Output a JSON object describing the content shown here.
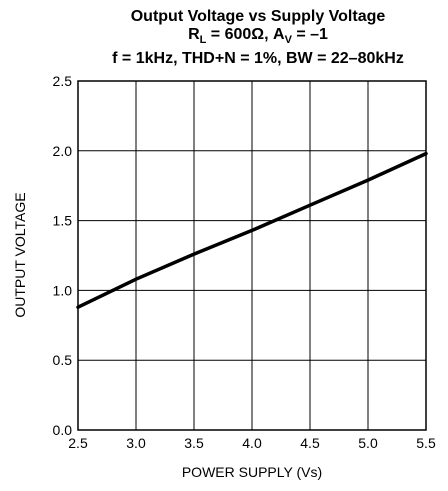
{
  "chart_data": {
    "type": "line",
    "title": "Output Voltage vs Supply Voltage",
    "subtitle_line1": {
      "r_main": "R",
      "r_sub": "L",
      "middle": " = 600Ω, A",
      "a_sub": "V",
      "end": " = –1"
    },
    "subtitle_line2": "f = 1kHz, THD+N = 1%, BW = 22–80kHz",
    "xlabel": "POWER SUPPLY (Vs)",
    "ylabel": "OUTPUT VOLTAGE",
    "xlim": [
      2.5,
      5.5
    ],
    "ylim": [
      0.0,
      2.5
    ],
    "x_ticks": [
      "2.5",
      "3.0",
      "3.5",
      "4.0",
      "4.5",
      "5.0",
      "5.5"
    ],
    "y_ticks": [
      "0.0",
      "0.5",
      "1.0",
      "1.5",
      "2.0",
      "2.5"
    ],
    "grid": true,
    "series": [
      {
        "x": [
          2.5,
          3.0,
          3.5,
          4.0,
          4.5,
          5.0,
          5.5
        ],
        "y": [
          0.88,
          1.08,
          1.26,
          1.43,
          1.61,
          1.79,
          1.98
        ]
      }
    ]
  }
}
